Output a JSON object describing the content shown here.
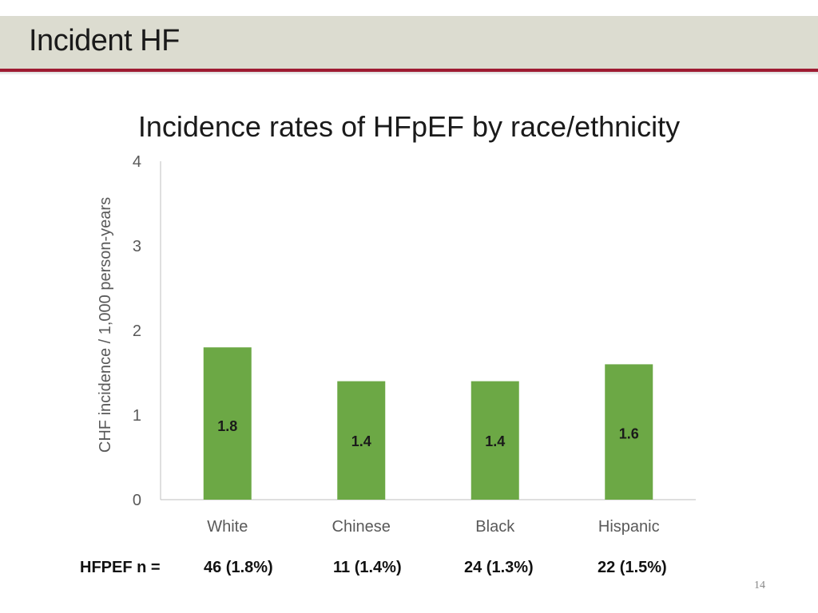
{
  "slide": {
    "title": "Incident HF",
    "page_number": "14"
  },
  "chart_data": {
    "type": "bar",
    "title": "Incidence rates of HFpEF by race/ethnicity",
    "xlabel": "",
    "ylabel": "CHF incidence / 1,000 person-years",
    "categories": [
      "White",
      "Chinese",
      "Black",
      "Hispanic"
    ],
    "values": [
      1.8,
      1.4,
      1.4,
      1.6
    ],
    "data_labels": [
      "1.8",
      "1.4",
      "1.4",
      "1.6"
    ],
    "ylim": [
      0,
      4
    ],
    "yticks": [
      "0",
      "1",
      "2",
      "3",
      "4"
    ],
    "grid": false,
    "legend": "none",
    "bar_color": "#6ca845"
  },
  "hfpef_counts": {
    "row_label": "HFPEF  n =",
    "values": [
      "46 (1.8%)",
      "11 (1.4%)",
      "24 (1.3%)",
      "22 (1.5%)"
    ]
  }
}
